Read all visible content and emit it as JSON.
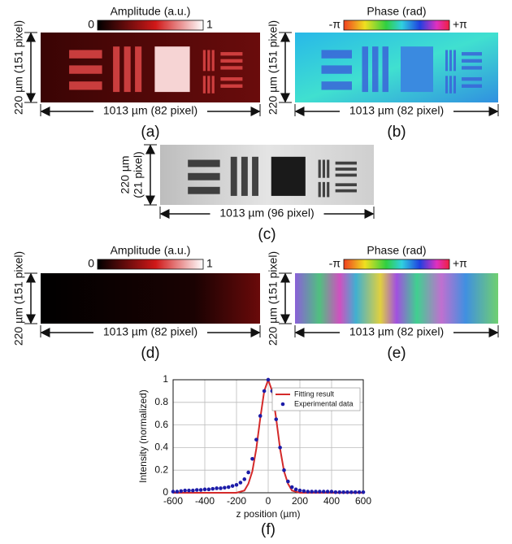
{
  "panels": [
    {
      "caption": "(a)",
      "colorbar_title": "Amplitude (a.u.)",
      "colorbar_min": "0",
      "colorbar_max": "1",
      "width_label": "1013 µm (82 pixel)",
      "height_label": [
        "220 µm  (151 pixel)"
      ]
    },
    {
      "caption": "(b)",
      "colorbar_title": "Phase (rad)",
      "colorbar_min": "-π",
      "colorbar_max": "+π",
      "width_label": "1013 µm (82 pixel)",
      "height_label": [
        "220 µm  (151 pixel)"
      ]
    },
    {
      "caption": "(c)",
      "width_label": "1013 µm (96 pixel)",
      "height_label": [
        "220 µm",
        "(21 pixel)"
      ]
    },
    {
      "caption": "(d)",
      "colorbar_title": "Amplitude (a.u.)",
      "colorbar_min": "0",
      "colorbar_max": "1",
      "width_label": "1013 µm (82 pixel)",
      "height_label": [
        "220 µm  (151 pixel)"
      ]
    },
    {
      "caption": "(e)",
      "colorbar_title": "Phase (rad)",
      "colorbar_min": "-π",
      "colorbar_max": "+π",
      "width_label": "1013 µm (82 pixel)",
      "height_label": [
        "220 µm  (151 pixel)"
      ]
    }
  ],
  "chart_data": {
    "type": "line",
    "caption": "(f)",
    "x_label": "z position (µm)",
    "y_label": "Intensity (normalized)",
    "x": [
      -600,
      -575,
      -550,
      -525,
      -500,
      -475,
      -450,
      -425,
      -400,
      -375,
      -350,
      -325,
      -300,
      -275,
      -250,
      -225,
      -200,
      -175,
      -150,
      -125,
      -100,
      -75,
      -50,
      -25,
      0,
      25,
      50,
      75,
      100,
      125,
      150,
      175,
      200,
      225,
      250,
      275,
      300,
      325,
      350,
      375,
      400,
      425,
      450,
      475,
      500,
      525,
      550,
      575,
      600
    ],
    "series": [
      {
        "name": "Fitting result",
        "color": "#d42a2a",
        "style": "line",
        "values": [
          0,
          0,
          0,
          0,
          0,
          0,
          0,
          0,
          0,
          0,
          0,
          0,
          0,
          0,
          0,
          0,
          0,
          0.01,
          0.02,
          0.08,
          0.19,
          0.39,
          0.66,
          0.9,
          1,
          0.9,
          0.66,
          0.39,
          0.19,
          0.08,
          0.02,
          0.01,
          0,
          0,
          0,
          0,
          0,
          0,
          0,
          0,
          0,
          0,
          0,
          0,
          0,
          0,
          0,
          0,
          0
        ]
      },
      {
        "name": "Experimental data",
        "color": "#1c1ca8",
        "style": "dots",
        "values": [
          0.01,
          0.01,
          0.015,
          0.02,
          0.02,
          0.02,
          0.025,
          0.025,
          0.03,
          0.03,
          0.035,
          0.04,
          0.04,
          0.045,
          0.05,
          0.06,
          0.07,
          0.09,
          0.12,
          0.18,
          0.3,
          0.47,
          0.68,
          0.9,
          1,
          0.9,
          0.65,
          0.4,
          0.2,
          0.1,
          0.05,
          0.03,
          0.02,
          0.015,
          0.01,
          0.01,
          0.01,
          0.01,
          0.01,
          0.01,
          0.01,
          0.005,
          0.005,
          0.005,
          0.005,
          0.005,
          0.005,
          0.005,
          0.005
        ]
      }
    ],
    "xlim": [
      -600,
      600
    ],
    "xticks": [
      -600,
      -400,
      -200,
      0,
      200,
      400,
      600
    ],
    "ylim": [
      0,
      1
    ],
    "yticks": [
      0,
      0.2,
      0.4,
      0.6,
      0.8,
      1
    ],
    "grid": true,
    "legend": "upper right"
  }
}
